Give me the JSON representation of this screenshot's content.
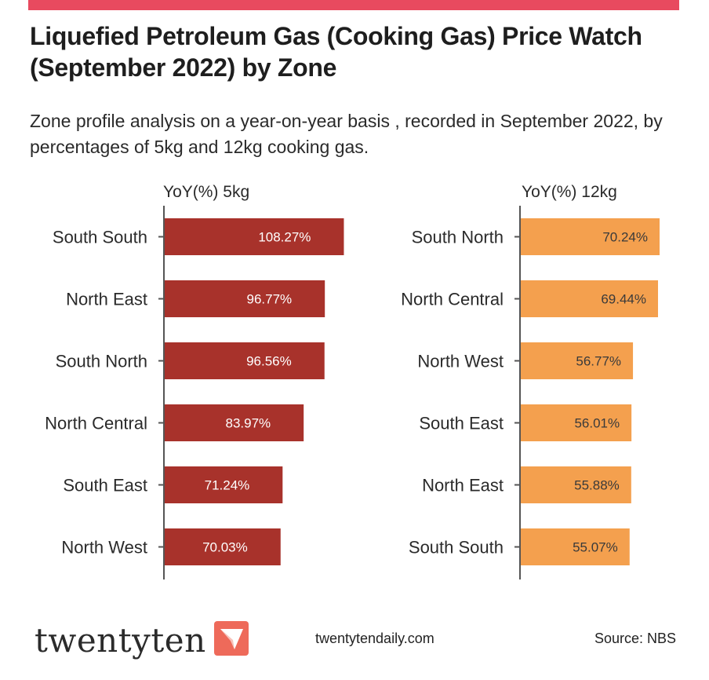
{
  "header": {
    "title": "Liquefied Petroleum Gas (Cooking Gas) Price Watch (September 2022) by Zone",
    "subtitle": "Zone profile analysis on a year-on-year basis , recorded in September 2022, by percentages of 5kg and 12kg cooking gas.",
    "accent_color": "#e84a5f"
  },
  "chart_data": [
    {
      "type": "bar",
      "orientation": "horizontal",
      "title": "YoY(%) 5kg",
      "categories": [
        "South South",
        "North East",
        "South North",
        "North Central",
        "South East",
        "North West"
      ],
      "values": [
        108.27,
        96.77,
        96.56,
        83.97,
        71.24,
        70.03
      ],
      "value_labels": [
        "108.27%",
        "96.77%",
        "96.56%",
        "83.97%",
        "71.24%",
        "70.03%"
      ],
      "color": "#a8322b",
      "label_color": "#ffffff",
      "grid": false
    },
    {
      "type": "bar",
      "orientation": "horizontal",
      "title": "YoY(%) 12kg",
      "categories": [
        "South North",
        "North Central",
        "North West",
        "South East",
        "North East",
        "South South"
      ],
      "values": [
        70.24,
        69.44,
        56.77,
        56.01,
        55.88,
        55.07
      ],
      "value_labels": [
        "70.24%",
        "69.44%",
        "56.77%",
        "56.01%",
        "55.88%",
        "55.07%"
      ],
      "color": "#f4a04e",
      "label_color": "#3a3a3a",
      "grid": false
    }
  ],
  "footer": {
    "brand": "twentyten",
    "brand_icon": "paper-plane-icon",
    "brand_color": "#ee6a5a",
    "website": "twentytendaily.com",
    "source": "Source: NBS"
  }
}
